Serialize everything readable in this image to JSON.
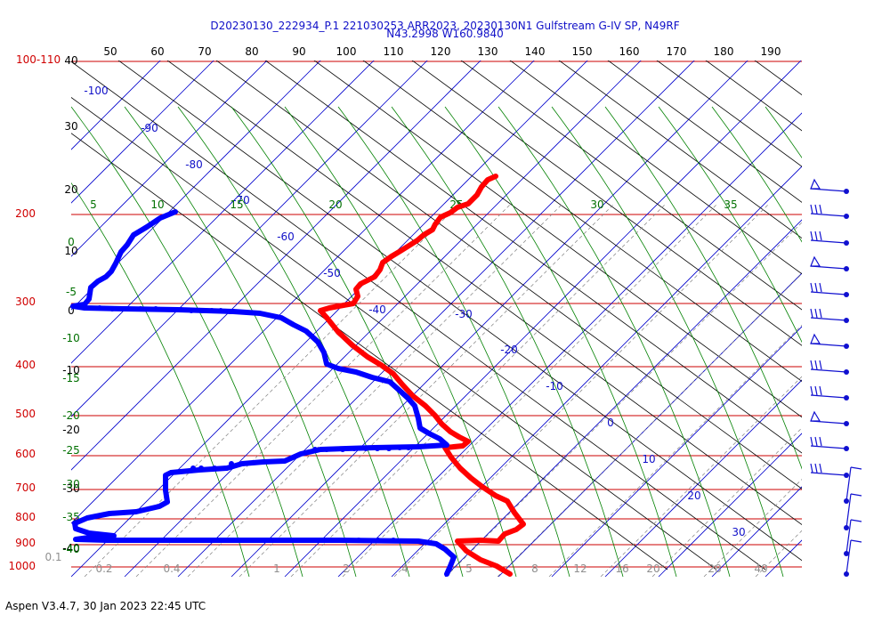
{
  "chart_data": {
    "type": "skew-t",
    "title_line1": "D20230130_222934_P.1 221030253 ARR2023, 20230130N1 Gulfstream G-IV SP, N49RF",
    "title_line2": "N43.2998 W160.9840",
    "pressure_labels": [
      "100-110",
      "200",
      "300",
      "400",
      "500",
      "600",
      "700",
      "800",
      "900",
      "1000"
    ],
    "pressure_levels": [
      110,
      210,
      310,
      410,
      510,
      610,
      710,
      810,
      910,
      1010
    ],
    "top_tick_labels": [
      "50",
      "60",
      "70",
      "80",
      "90",
      "100",
      "110",
      "120",
      "130",
      "140",
      "150",
      "160",
      "170",
      "180",
      "190"
    ],
    "left_temp_labels": [
      "40",
      "30",
      "20",
      "10",
      "0",
      "-10",
      "-20",
      "-30",
      "-40"
    ],
    "isotherm_labels": [
      "-100",
      "-90",
      "-80",
      "-70",
      "-60",
      "-50",
      "-40",
      "-30",
      "-20",
      "-10",
      "0",
      "10",
      "20",
      "30"
    ],
    "mixing_ratio_labels": [
      "0.1",
      "0.2",
      "0.4",
      "1",
      "2",
      "4",
      "5",
      "8",
      "12",
      "16",
      "20",
      "28",
      "40"
    ],
    "theta_e_labels": [
      "5",
      "10",
      "15",
      "20",
      "25",
      "30",
      "35"
    ],
    "theta_e_left_labels": [
      "0",
      "-5",
      "-10",
      "-15",
      "-20",
      "-25",
      "-30",
      "-35",
      "-40"
    ],
    "colors": {
      "temperature": "#ff0000",
      "dewpoint": "#0000ff",
      "isobar": "#cc0000",
      "isotherm": "#0000cc",
      "dry_adiabat": "#000000",
      "moist_adiabat": "#008000",
      "mixing_ratio": "#808080"
    },
    "temperature_trace": [],
    "dewpoint_trace": [],
    "dewpoint_dots": [],
    "wind_barbs": [],
    "footer": "Aspen V3.4.7, 30 Jan 2023  22:45 UTC"
  }
}
